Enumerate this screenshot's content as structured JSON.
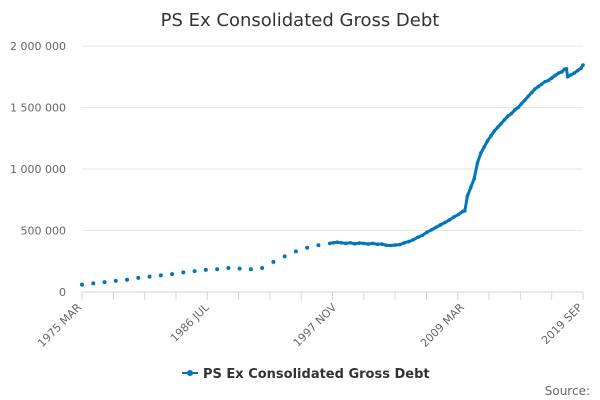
{
  "chart_data": {
    "type": "line",
    "title": "PS Ex Consolidated Gross Debt",
    "xlabel": "",
    "ylabel": "",
    "ylim": [
      0,
      2000000
    ],
    "yticks": [
      0,
      500000,
      1000000,
      1500000,
      2000000
    ],
    "ytick_labels": [
      "0",
      "500 000",
      "1 000 000",
      "1 500 000",
      "2 000 000"
    ],
    "xtick_labels": [
      "1975 MAR",
      "1986 JUL",
      "1997 NOV",
      "2009 MAR",
      "2019 SEP"
    ],
    "xtick_values": [
      1975.17,
      1986.5,
      1997.83,
      2009.17,
      2019.67
    ],
    "xlim": [
      1975.17,
      2019.67
    ],
    "grid": true,
    "legend_position": "bottom-center",
    "color": "#0077bb",
    "series": [
      {
        "name": "PS Ex Consolidated Gross Debt",
        "segments": [
          {
            "style": "dots",
            "points": [
              [
                1975.17,
                60000
              ],
              [
                1976.17,
                70000
              ],
              [
                1977.17,
                80000
              ],
              [
                1978.17,
                90000
              ],
              [
                1979.17,
                100000
              ],
              [
                1980.17,
                115000
              ],
              [
                1981.17,
                125000
              ],
              [
                1982.17,
                135000
              ],
              [
                1983.17,
                145000
              ],
              [
                1984.17,
                160000
              ],
              [
                1985.17,
                170000
              ],
              [
                1986.17,
                180000
              ],
              [
                1987.17,
                185000
              ],
              [
                1988.17,
                195000
              ],
              [
                1989.17,
                190000
              ],
              [
                1990.17,
                185000
              ],
              [
                1991.17,
                195000
              ],
              [
                1992.17,
                245000
              ],
              [
                1993.17,
                290000
              ],
              [
                1994.17,
                330000
              ],
              [
                1995.17,
                360000
              ],
              [
                1996.17,
                380000
              ]
            ]
          },
          {
            "style": "line",
            "points": [
              [
                1997.17,
                395000
              ],
              [
                1997.5,
                400000
              ],
              [
                1997.83,
                405000
              ],
              [
                1998.2,
                400000
              ],
              [
                1998.6,
                395000
              ],
              [
                1999.0,
                400000
              ],
              [
                1999.4,
                392000
              ],
              [
                1999.8,
                398000
              ],
              [
                2000.2,
                395000
              ],
              [
                2000.6,
                390000
              ],
              [
                2001.0,
                395000
              ],
              [
                2001.4,
                388000
              ],
              [
                2001.8,
                390000
              ],
              [
                2002.2,
                380000
              ],
              [
                2002.6,
                378000
              ],
              [
                2003.0,
                382000
              ],
              [
                2003.4,
                385000
              ],
              [
                2003.8,
                400000
              ],
              [
                2004.2,
                410000
              ],
              [
                2004.6,
                425000
              ],
              [
                2005.0,
                445000
              ],
              [
                2005.4,
                460000
              ],
              [
                2005.8,
                485000
              ],
              [
                2006.2,
                505000
              ],
              [
                2006.6,
                525000
              ],
              [
                2007.0,
                545000
              ],
              [
                2007.4,
                565000
              ],
              [
                2007.8,
                585000
              ],
              [
                2008.2,
                610000
              ],
              [
                2008.6,
                630000
              ],
              [
                2009.0,
                655000
              ],
              [
                2009.17,
                660000
              ],
              [
                2009.4,
                780000
              ],
              [
                2009.7,
                850000
              ],
              [
                2010.0,
                920000
              ],
              [
                2010.3,
                1050000
              ],
              [
                2010.6,
                1130000
              ],
              [
                2010.9,
                1180000
              ],
              [
                2011.2,
                1230000
              ],
              [
                2011.5,
                1270000
              ],
              [
                2011.8,
                1310000
              ],
              [
                2012.1,
                1340000
              ],
              [
                2012.4,
                1370000
              ],
              [
                2012.7,
                1400000
              ],
              [
                2013.0,
                1430000
              ],
              [
                2013.3,
                1450000
              ],
              [
                2013.6,
                1480000
              ],
              [
                2013.9,
                1500000
              ],
              [
                2014.2,
                1530000
              ],
              [
                2014.5,
                1560000
              ],
              [
                2014.8,
                1590000
              ],
              [
                2015.1,
                1620000
              ],
              [
                2015.4,
                1650000
              ],
              [
                2015.7,
                1670000
              ],
              [
                2016.0,
                1690000
              ],
              [
                2016.3,
                1710000
              ],
              [
                2016.6,
                1720000
              ],
              [
                2016.9,
                1740000
              ],
              [
                2017.2,
                1760000
              ],
              [
                2017.5,
                1780000
              ],
              [
                2017.8,
                1790000
              ],
              [
                2018.0,
                1810000
              ],
              [
                2018.2,
                1815000
              ],
              [
                2018.3,
                1750000
              ],
              [
                2018.6,
                1765000
              ],
              [
                2018.9,
                1780000
              ],
              [
                2019.2,
                1800000
              ],
              [
                2019.5,
                1820000
              ],
              [
                2019.67,
                1845000
              ]
            ]
          }
        ]
      }
    ],
    "source_label": "Source:"
  }
}
